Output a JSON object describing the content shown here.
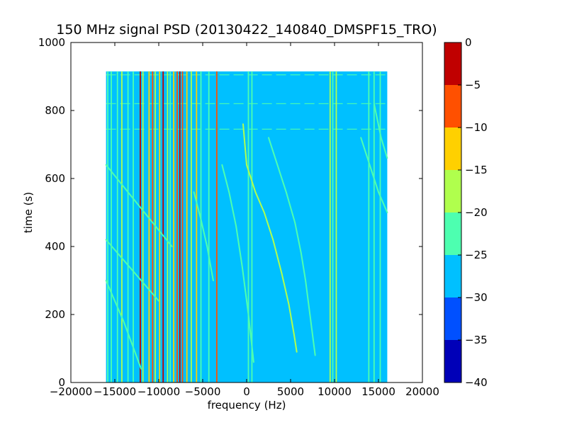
{
  "chart_data": {
    "type": "heatmap",
    "title": "150 MHz signal PSD (20130422_140840_DMSPF15_TRO)",
    "xlabel": "frequency (Hz)",
    "ylabel": "time (s)",
    "xlim": [
      -20000,
      20000
    ],
    "ylim": [
      0,
      1000
    ],
    "xticks": [
      -20000,
      -15000,
      -10000,
      -5000,
      0,
      5000,
      10000,
      15000,
      20000
    ],
    "yticks": [
      0,
      200,
      400,
      600,
      800,
      1000
    ],
    "grid": false,
    "data_extent": {
      "x": [
        -16000,
        16000
      ],
      "y": [
        0,
        915
      ]
    },
    "background_level": -27.5,
    "colorbar": {
      "range": [
        -40,
        0
      ],
      "ticks": [
        0,
        -5,
        -10,
        -15,
        -20,
        -25,
        -30,
        -35,
        -40
      ],
      "levels": [
        {
          "from": -40,
          "to": -35,
          "color": "#0000b8"
        },
        {
          "from": -35,
          "to": -30,
          "color": "#0050ff"
        },
        {
          "from": -30,
          "to": -25,
          "color": "#00c0ff"
        },
        {
          "from": -25,
          "to": -20,
          "color": "#4dffb0"
        },
        {
          "from": -20,
          "to": -15,
          "color": "#b0ff4d"
        },
        {
          "from": -15,
          "to": -10,
          "color": "#ffd000"
        },
        {
          "from": -10,
          "to": -5,
          "color": "#ff5000"
        },
        {
          "from": -5,
          "to": 0,
          "color": "#c00000"
        }
      ]
    },
    "vertical_lines": [
      {
        "f": -15800,
        "level": -22
      },
      {
        "f": -15400,
        "level": -22
      },
      {
        "f": -14700,
        "level": -22
      },
      {
        "f": -14200,
        "level": -17
      },
      {
        "f": -13500,
        "level": -22
      },
      {
        "f": -12900,
        "level": -22
      },
      {
        "f": -12100,
        "level": -2
      },
      {
        "f": -11800,
        "level": -17
      },
      {
        "f": -11100,
        "level": -12
      },
      {
        "f": -10700,
        "level": -7
      },
      {
        "f": -10400,
        "level": -17
      },
      {
        "f": -9900,
        "level": -12
      },
      {
        "f": -9500,
        "level": -2
      },
      {
        "f": -9000,
        "level": -17
      },
      {
        "f": -8700,
        "level": -22
      },
      {
        "f": -8300,
        "level": -12
      },
      {
        "f": -7900,
        "level": -7
      },
      {
        "f": -7600,
        "level": -2
      },
      {
        "f": -7300,
        "level": -7
      },
      {
        "f": -6800,
        "level": -12
      },
      {
        "f": -6300,
        "level": -17
      },
      {
        "f": -5700,
        "level": -12
      },
      {
        "f": -5200,
        "level": -22
      },
      {
        "f": -4300,
        "level": -22
      },
      {
        "f": -3400,
        "level": -7
      },
      {
        "f": 200,
        "level": -22
      },
      {
        "f": 600,
        "level": -22
      },
      {
        "f": 9500,
        "level": -17
      },
      {
        "f": 9800,
        "level": -22
      },
      {
        "f": 10200,
        "level": -17
      },
      {
        "f": 13900,
        "level": -22
      },
      {
        "f": 14500,
        "level": -22
      },
      {
        "f": 15200,
        "level": -22
      }
    ],
    "tracks": [
      {
        "level": -17,
        "points": [
          [
            -400,
            760
          ],
          [
            0,
            640
          ],
          [
            1000,
            560
          ],
          [
            2000,
            500
          ],
          [
            3000,
            420
          ],
          [
            4000,
            320
          ],
          [
            4800,
            230
          ],
          [
            5400,
            140
          ],
          [
            5700,
            90
          ]
        ]
      },
      {
        "level": -22,
        "points": [
          [
            2500,
            720
          ],
          [
            3500,
            640
          ],
          [
            4500,
            560
          ],
          [
            5500,
            470
          ],
          [
            6200,
            380
          ],
          [
            6700,
            300
          ],
          [
            7200,
            200
          ],
          [
            7800,
            80
          ]
        ]
      },
      {
        "level": -22,
        "points": [
          [
            -2800,
            640
          ],
          [
            -2000,
            560
          ],
          [
            -1200,
            460
          ],
          [
            -500,
            340
          ],
          [
            200,
            200
          ],
          [
            800,
            60
          ]
        ]
      },
      {
        "level": -22,
        "points": [
          [
            -16000,
            640
          ],
          [
            -13500,
            560
          ],
          [
            -11000,
            480
          ],
          [
            -8500,
            400
          ]
        ]
      },
      {
        "level": -22,
        "points": [
          [
            -16000,
            420
          ],
          [
            -14000,
            360
          ],
          [
            -12000,
            300
          ],
          [
            -10000,
            240
          ]
        ]
      },
      {
        "level": -22,
        "points": [
          [
            -16000,
            300
          ],
          [
            -15000,
            240
          ],
          [
            -14000,
            180
          ],
          [
            -13000,
            110
          ],
          [
            -12000,
            40
          ]
        ]
      },
      {
        "level": -22,
        "points": [
          [
            -6000,
            560
          ],
          [
            -5200,
            480
          ],
          [
            -4500,
            400
          ],
          [
            -3800,
            300
          ]
        ]
      },
      {
        "level": -22,
        "points": [
          [
            13000,
            720
          ],
          [
            14000,
            640
          ],
          [
            15000,
            560
          ],
          [
            16000,
            500
          ]
        ]
      },
      {
        "level": -22,
        "points": [
          [
            14500,
            820
          ],
          [
            15300,
            720
          ],
          [
            16000,
            660
          ]
        ]
      }
    ],
    "horizontal_lines": [
      {
        "t": 905,
        "level": -22
      },
      {
        "t": 820,
        "level": -22
      },
      {
        "t": 745,
        "level": -22
      }
    ]
  }
}
